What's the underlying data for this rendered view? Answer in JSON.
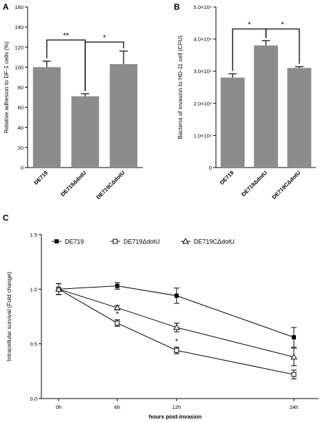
{
  "chart_data": [
    {
      "panel": "A",
      "type": "bar",
      "title": "",
      "ylabel": "Relative adhesion to DF-1 cells (%)",
      "xlabel": "",
      "ylim": [
        0,
        160
      ],
      "yticks": [
        "0",
        "20",
        "40",
        "60",
        "80",
        "100",
        "120",
        "140",
        "160"
      ],
      "categories": [
        "DE719",
        "DE719ΔdotU",
        "DE719CΔdotU"
      ],
      "values": [
        100,
        71,
        103
      ],
      "errors": [
        6,
        2.5,
        13
      ],
      "color": "#8c8c8c",
      "significance": [
        {
          "from": 0,
          "to": 1,
          "label": "**"
        },
        {
          "from": 1,
          "to": 2,
          "label": "*"
        }
      ]
    },
    {
      "panel": "B",
      "type": "bar",
      "title": "",
      "ylabel": "Bacteria of invasion to HD-11 cell (CFU)",
      "xlabel": "",
      "ylim": [
        0,
        50000
      ],
      "yticks": [
        "0",
        "1.0×10⁴",
        "2.0×10⁴",
        "3.0×10⁴",
        "4.0×10⁴",
        "5.0×10⁴"
      ],
      "categories": [
        "DE719",
        "DE719ΔdotU",
        "DE719CΔdotU"
      ],
      "values": [
        28000,
        38000,
        31000
      ],
      "errors": [
        1200,
        1500,
        400
      ],
      "color": "#8c8c8c",
      "significance": [
        {
          "from": 0,
          "to": 1,
          "label": "*"
        },
        {
          "from": 1,
          "to": 2,
          "label": "*"
        }
      ]
    },
    {
      "panel": "C",
      "type": "line",
      "title": "",
      "ylabel": "Intracellular survival (Fold change)",
      "xlabel": "hours post-invasion",
      "ylim": [
        0,
        1.5
      ],
      "yticks": [
        "0.0",
        "0.5",
        "1.0",
        "1.5"
      ],
      "x": [
        0,
        6,
        12,
        24
      ],
      "xticks": [
        "0h",
        "6h",
        "12h",
        "24h"
      ],
      "legend_position": "top-left",
      "series": [
        {
          "name": "DE719",
          "marker": "filled-square",
          "values": [
            1.0,
            1.03,
            0.94,
            0.56
          ],
          "errors": [
            0.05,
            0.03,
            0.07,
            0.09
          ]
        },
        {
          "name": "DE719ΔdotU",
          "marker": "open-square",
          "values": [
            1.0,
            0.69,
            0.44,
            0.22
          ],
          "errors": [
            0.05,
            0.03,
            0.03,
            0.04
          ]
        },
        {
          "name": "DE719CΔdotU",
          "marker": "open-triangle",
          "values": [
            1.0,
            0.83,
            0.65,
            0.38
          ],
          "errors": [
            0.05,
            0.02,
            0.04,
            0.08
          ]
        }
      ],
      "annotations": [
        {
          "x": 6,
          "series": 1,
          "label": "*"
        },
        {
          "x": 12,
          "series": 1,
          "label": "*"
        }
      ]
    }
  ]
}
